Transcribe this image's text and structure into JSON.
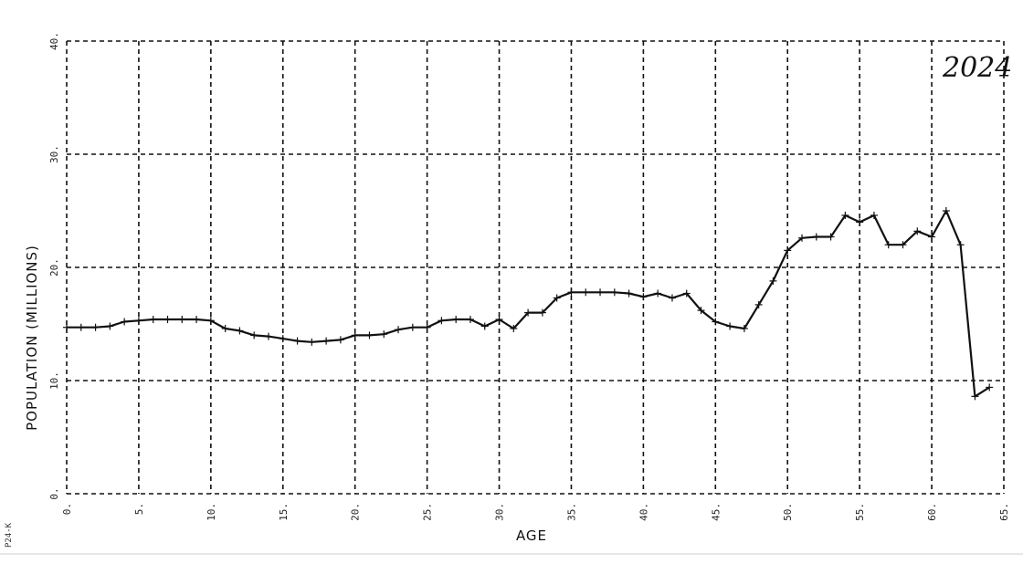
{
  "chart_data": {
    "type": "line",
    "title": "",
    "xlabel": "AGE",
    "ylabel": "POPULATION (MILLIONS)",
    "annotation": "2024",
    "corner_label": "P24-K",
    "xlim": [
      0,
      65
    ],
    "ylim": [
      0,
      40
    ],
    "x_ticks": [
      0,
      5,
      10,
      15,
      20,
      25,
      30,
      35,
      40,
      45,
      50,
      55,
      60,
      65
    ],
    "x_tick_labels": [
      "0.",
      "5.",
      "10.",
      "15.",
      "20.",
      "25.",
      "30.",
      "35.",
      "40.",
      "45.",
      "50.",
      "55.",
      "60.",
      "65."
    ],
    "y_ticks": [
      0,
      10,
      20,
      30,
      40
    ],
    "y_tick_labels": [
      "0.",
      "10.",
      "20.",
      "30.",
      "40."
    ],
    "grid": true,
    "series": [
      {
        "x": [
          0,
          1,
          2,
          3,
          4,
          5,
          6,
          7,
          8,
          9,
          10,
          11,
          12,
          13,
          14,
          15,
          16,
          17,
          18,
          19,
          20,
          21,
          22,
          23,
          24,
          25,
          26,
          27,
          28,
          29,
          30,
          31,
          32,
          33,
          34,
          35,
          36,
          37,
          38,
          39,
          40,
          41,
          42,
          43,
          44,
          45,
          46,
          47,
          48,
          49,
          50,
          51,
          52,
          53,
          54,
          55,
          56,
          57,
          58,
          59,
          60,
          61,
          62,
          63,
          64
        ],
        "y": [
          14.7,
          14.7,
          14.7,
          14.8,
          15.2,
          15.3,
          15.4,
          15.4,
          15.4,
          15.4,
          15.3,
          14.6,
          14.4,
          14.0,
          13.9,
          13.7,
          13.5,
          13.4,
          13.5,
          13.6,
          14.0,
          14.0,
          14.1,
          14.5,
          14.7,
          14.7,
          15.3,
          15.4,
          15.4,
          14.8,
          15.4,
          14.6,
          16.0,
          16.0,
          17.3,
          17.8,
          17.8,
          17.8,
          17.8,
          17.7,
          17.4,
          17.7,
          17.3,
          17.7,
          16.2,
          15.2,
          14.8,
          14.6,
          16.7,
          18.8,
          21.5,
          22.6,
          22.7,
          22.7,
          24.6,
          24.0,
          24.6,
          22.0,
          22.0,
          23.2,
          22.7,
          25.0,
          22.0,
          8.6,
          9.4
        ]
      }
    ]
  }
}
